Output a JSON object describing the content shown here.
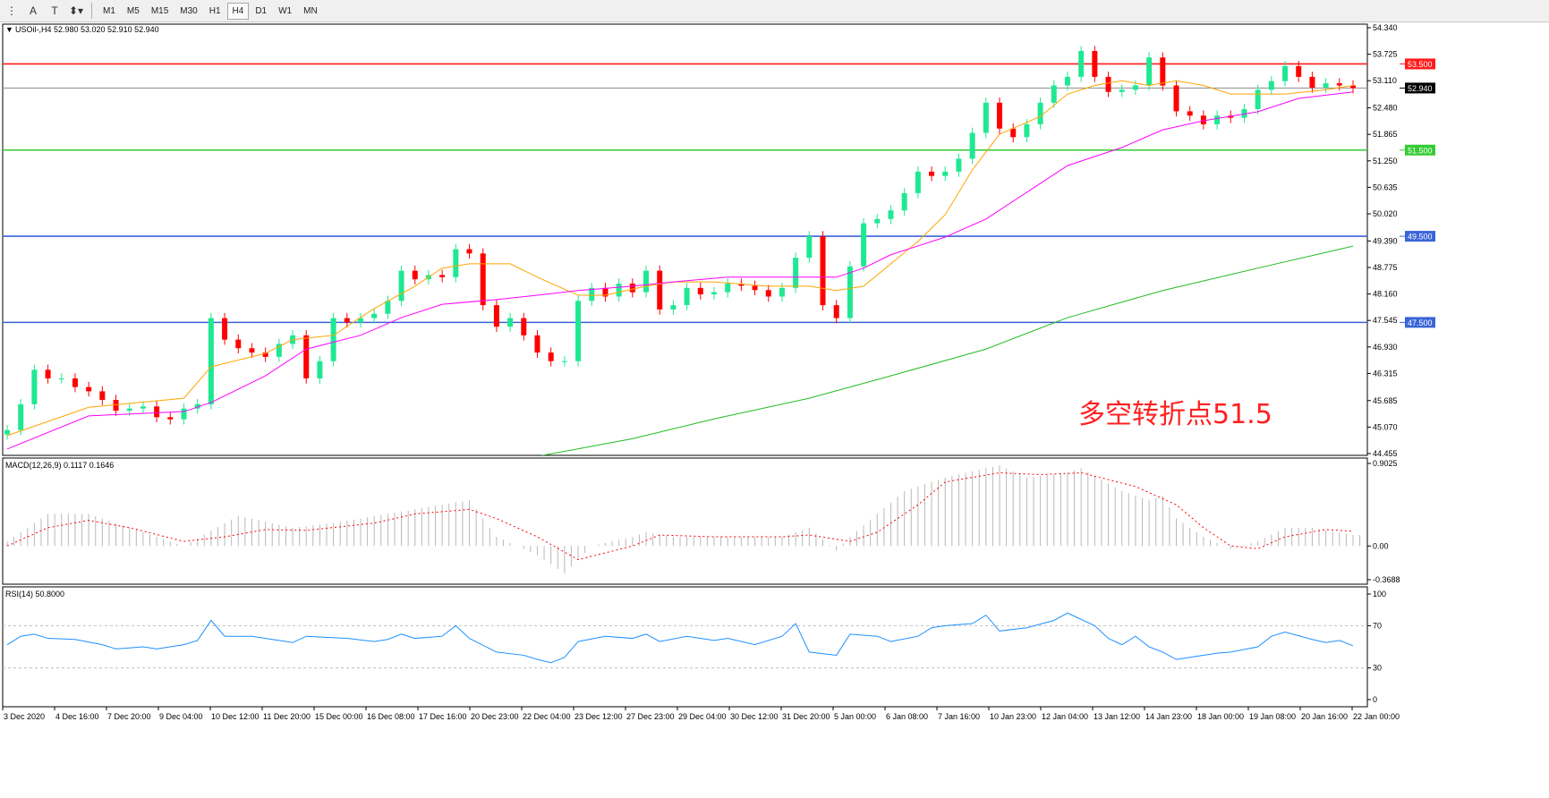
{
  "toolbar": {
    "tools": [
      {
        "icon": "period-separator-icon",
        "glyph": "⋮"
      },
      {
        "icon": "text-tool-icon",
        "glyph": "A"
      },
      {
        "icon": "text-label-icon",
        "glyph": "T"
      },
      {
        "icon": "arrows-tool-icon",
        "glyph": "⬍▾"
      }
    ],
    "timeframes": [
      "M1",
      "M5",
      "M15",
      "M30",
      "H1",
      "H4",
      "D1",
      "W1",
      "MN"
    ],
    "active_timeframe": "H4"
  },
  "header": {
    "symbol_info": "USOil-,H4  52.980 53.020 52.910 52.940"
  },
  "annotation": {
    "text": "多空转折点51.5",
    "color": "#ff2020"
  },
  "colors": {
    "bull": "#1fe893",
    "bear": "#ff0000",
    "ma_fast": "#ffa500",
    "ma_mid": "#ff00ff",
    "ma_slow": "#22bb22",
    "rsi": "#1e90ff",
    "macd_hist": "#b8b8b8",
    "macd_signal": "#ff0000"
  },
  "chart_data": [
    {
      "type": "candlestick",
      "title": "USOil-,H4",
      "ylim": [
        44.455,
        54.34
      ],
      "yticks": [
        "54.340",
        "53.725",
        "53.110",
        "52.480",
        "51.865",
        "51.250",
        "50.635",
        "50.020",
        "49.390",
        "48.775",
        "48.160",
        "47.545",
        "46.930",
        "46.315",
        "45.685",
        "45.070",
        "44.455"
      ],
      "xticks": [
        "3 Dec 2020",
        "4 Dec 16:00",
        "7 Dec 20:00",
        "9 Dec 04:00",
        "10 Dec 12:00",
        "11 Dec 20:00",
        "15 Dec 00:00",
        "16 Dec 08:00",
        "17 Dec 16:00",
        "20 Dec 23:00",
        "22 Dec 04:00",
        "23 Dec 12:00",
        "27 Dec 23:00",
        "29 Dec 04:00",
        "30 Dec 12:00",
        "31 Dec 20:00",
        "5 Jan 00:00",
        "6 Jan 08:00",
        "7 Jan 16:00",
        "10 Jan 23:00",
        "12 Jan 04:00",
        "13 Jan 12:00",
        "14 Jan 23:00",
        "18 Jan 00:00",
        "19 Jan 08:00",
        "20 Jan 16:00",
        "22 Jan 00:00"
      ],
      "current_price": {
        "value": 52.94,
        "label": "52.940"
      },
      "horizontal_levels": [
        {
          "value": 53.5,
          "label": "53.500",
          "color": "#ff1a1a"
        },
        {
          "value": 51.5,
          "label": "51.500",
          "color": "#33cc33"
        },
        {
          "value": 49.5,
          "label": "49.500",
          "color": "#3a64d8"
        },
        {
          "value": 47.5,
          "label": "47.500",
          "color": "#3a64d8"
        }
      ],
      "closes": [
        45.0,
        45.6,
        46.4,
        46.2,
        46.2,
        46.0,
        45.9,
        45.7,
        45.45,
        45.5,
        45.55,
        45.3,
        45.25,
        45.5,
        45.6,
        47.6,
        47.1,
        46.9,
        46.8,
        46.7,
        47.0,
        47.2,
        46.2,
        46.6,
        47.6,
        47.5,
        47.6,
        47.7,
        48.0,
        48.7,
        48.5,
        48.6,
        48.55,
        49.2,
        49.1,
        47.9,
        47.4,
        47.6,
        47.2,
        46.8,
        46.6,
        46.6,
        48.0,
        48.3,
        48.1,
        48.4,
        48.2,
        48.7,
        47.8,
        47.9,
        48.3,
        48.15,
        48.2,
        48.4,
        48.35,
        48.25,
        48.1,
        48.3,
        49.0,
        49.5,
        47.9,
        47.6,
        48.8,
        49.8,
        49.9,
        50.1,
        50.5,
        51.0,
        50.9,
        51.0,
        51.3,
        51.9,
        52.6,
        52.0,
        51.8,
        52.1,
        52.6,
        53.0,
        53.2,
        53.8,
        53.2,
        52.85,
        52.9,
        53.0,
        53.65,
        53.0,
        52.4,
        52.3,
        52.1,
        52.3,
        52.25,
        52.45,
        52.9,
        53.1,
        53.45,
        53.2,
        52.95,
        53.05,
        53.0,
        52.94
      ],
      "first_open": 44.9,
      "moving_averages": [
        {
          "key": "ma_fast",
          "points": [
            [
              0,
              44.87
            ],
            [
              6,
              45.53
            ],
            [
              13,
              45.74
            ],
            [
              15,
              46.47
            ],
            [
              19,
              46.78
            ],
            [
              21,
              47.1
            ],
            [
              24,
              47.2
            ],
            [
              27,
              47.82
            ],
            [
              30,
              48.34
            ],
            [
              32,
              48.76
            ],
            [
              34,
              48.86
            ],
            [
              37,
              48.86
            ],
            [
              39,
              48.55
            ],
            [
              42,
              48.13
            ],
            [
              44,
              48.13
            ],
            [
              47,
              48.34
            ],
            [
              49,
              48.44
            ],
            [
              52,
              48.44
            ],
            [
              56,
              48.34
            ],
            [
              59,
              48.34
            ],
            [
              61,
              48.24
            ],
            [
              63,
              48.34
            ],
            [
              65,
              48.86
            ],
            [
              67,
              49.38
            ],
            [
              69,
              50.0
            ],
            [
              71,
              51.04
            ],
            [
              73,
              51.87
            ],
            [
              76,
              52.28
            ],
            [
              78,
              52.8
            ],
            [
              80,
              53.0
            ],
            [
              82,
              53.11
            ],
            [
              84,
              53.0
            ],
            [
              86,
              53.11
            ],
            [
              88,
              53.0
            ],
            [
              90,
              52.8
            ],
            [
              92,
              52.8
            ],
            [
              94,
              52.8
            ],
            [
              97,
              52.9
            ],
            [
              99,
              53.0
            ]
          ]
        },
        {
          "key": "ma_mid",
          "points": [
            [
              0,
              44.56
            ],
            [
              6,
              45.33
            ],
            [
              13,
              45.43
            ],
            [
              15,
              45.64
            ],
            [
              19,
              46.26
            ],
            [
              22,
              46.88
            ],
            [
              26,
              47.2
            ],
            [
              29,
              47.61
            ],
            [
              32,
              47.92
            ],
            [
              36,
              48.03
            ],
            [
              39,
              48.13
            ],
            [
              42,
              48.24
            ],
            [
              46,
              48.34
            ],
            [
              49,
              48.44
            ],
            [
              53,
              48.55
            ],
            [
              59,
              48.55
            ],
            [
              61,
              48.55
            ],
            [
              63,
              48.76
            ],
            [
              65,
              49.07
            ],
            [
              69,
              49.48
            ],
            [
              72,
              49.9
            ],
            [
              75,
              50.52
            ],
            [
              78,
              51.14
            ],
            [
              82,
              51.56
            ],
            [
              85,
              51.97
            ],
            [
              88,
              52.18
            ],
            [
              92,
              52.39
            ],
            [
              95,
              52.7
            ],
            [
              99,
              52.85
            ]
          ]
        },
        {
          "key": "ma_slow",
          "points": [
            [
              39,
              44.39
            ],
            [
              46,
              44.8
            ],
            [
              52,
              45.26
            ],
            [
              59,
              45.74
            ],
            [
              65,
              46.26
            ],
            [
              72,
              46.88
            ],
            [
              78,
              47.61
            ],
            [
              85,
              48.24
            ],
            [
              92,
              48.76
            ],
            [
              99,
              49.27
            ]
          ]
        }
      ]
    },
    {
      "type": "bar+line",
      "title": "MACD(12,26,9) 0.1117 0.1646",
      "ylim": [
        -0.3688,
        0.9025
      ],
      "yticks": [
        "0.9025",
        "0.00",
        "-0.3688"
      ],
      "histogram": [
        [
          0,
          0.05
        ],
        [
          3,
          0.35
        ],
        [
          6,
          0.35
        ],
        [
          13,
          0.0
        ],
        [
          17,
          0.33
        ],
        [
          21,
          0.2
        ],
        [
          24,
          0.25
        ],
        [
          28,
          0.35
        ],
        [
          32,
          0.45
        ],
        [
          34,
          0.5
        ],
        [
          36,
          0.1
        ],
        [
          39,
          -0.1
        ],
        [
          41,
          -0.3
        ],
        [
          43,
          0.0
        ],
        [
          46,
          0.1
        ],
        [
          47,
          0.15
        ],
        [
          49,
          0.1
        ],
        [
          52,
          0.1
        ],
        [
          57,
          0.1
        ],
        [
          59,
          0.2
        ],
        [
          61,
          -0.05
        ],
        [
          62,
          0.1
        ],
        [
          64,
          0.35
        ],
        [
          66,
          0.6
        ],
        [
          69,
          0.75
        ],
        [
          72,
          0.85
        ],
        [
          73,
          0.88
        ],
        [
          75,
          0.75
        ],
        [
          78,
          0.8
        ],
        [
          79,
          0.85
        ],
        [
          82,
          0.6
        ],
        [
          84,
          0.5
        ],
        [
          85,
          0.55
        ],
        [
          86,
          0.3
        ],
        [
          88,
          0.1
        ],
        [
          90,
          -0.03
        ],
        [
          92,
          0.05
        ],
        [
          94,
          0.2
        ],
        [
          96,
          0.2
        ],
        [
          99,
          0.12
        ]
      ],
      "signal": [
        [
          0,
          0.0
        ],
        [
          3,
          0.2
        ],
        [
          6,
          0.28
        ],
        [
          9,
          0.2
        ],
        [
          13,
          0.05
        ],
        [
          16,
          0.1
        ],
        [
          19,
          0.18
        ],
        [
          22,
          0.17
        ],
        [
          27,
          0.25
        ],
        [
          30,
          0.35
        ],
        [
          34,
          0.4
        ],
        [
          36,
          0.3
        ],
        [
          39,
          0.1
        ],
        [
          42,
          -0.15
        ],
        [
          46,
          0.0
        ],
        [
          48,
          0.12
        ],
        [
          52,
          0.1
        ],
        [
          57,
          0.1
        ],
        [
          59,
          0.12
        ],
        [
          62,
          0.05
        ],
        [
          64,
          0.15
        ],
        [
          67,
          0.45
        ],
        [
          69,
          0.7
        ],
        [
          73,
          0.8
        ],
        [
          76,
          0.78
        ],
        [
          79,
          0.8
        ],
        [
          83,
          0.65
        ],
        [
          86,
          0.45
        ],
        [
          88,
          0.2
        ],
        [
          90,
          0.0
        ],
        [
          92,
          -0.03
        ],
        [
          94,
          0.1
        ],
        [
          97,
          0.18
        ],
        [
          99,
          0.16
        ]
      ]
    },
    {
      "type": "line",
      "title": "RSI(14) 50.8000",
      "ylim": [
        0,
        100
      ],
      "yticks": [
        "100",
        "70",
        "30",
        "0"
      ],
      "levels": [
        70,
        30
      ],
      "values": [
        [
          0,
          52
        ],
        [
          1,
          60
        ],
        [
          2,
          62
        ],
        [
          3,
          58
        ],
        [
          5,
          57
        ],
        [
          7,
          52
        ],
        [
          8,
          48
        ],
        [
          10,
          50
        ],
        [
          11,
          48
        ],
        [
          13,
          52
        ],
        [
          14,
          56
        ],
        [
          15,
          75
        ],
        [
          16,
          60
        ],
        [
          18,
          60
        ],
        [
          20,
          56
        ],
        [
          21,
          54
        ],
        [
          22,
          60
        ],
        [
          25,
          58
        ],
        [
          27,
          55
        ],
        [
          28,
          57
        ],
        [
          29,
          62
        ],
        [
          30,
          58
        ],
        [
          32,
          60
        ],
        [
          33,
          70
        ],
        [
          34,
          58
        ],
        [
          36,
          45
        ],
        [
          38,
          42
        ],
        [
          39,
          38
        ],
        [
          40,
          35
        ],
        [
          41,
          40
        ],
        [
          42,
          55
        ],
        [
          44,
          60
        ],
        [
          46,
          58
        ],
        [
          47,
          62
        ],
        [
          48,
          55
        ],
        [
          50,
          60
        ],
        [
          52,
          56
        ],
        [
          53,
          58
        ],
        [
          55,
          52
        ],
        [
          57,
          60
        ],
        [
          58,
          72
        ],
        [
          59,
          45
        ],
        [
          61,
          42
        ],
        [
          62,
          62
        ],
        [
          64,
          60
        ],
        [
          65,
          55
        ],
        [
          67,
          60
        ],
        [
          68,
          68
        ],
        [
          69,
          70
        ],
        [
          71,
          72
        ],
        [
          72,
          80
        ],
        [
          73,
          65
        ],
        [
          75,
          68
        ],
        [
          77,
          75
        ],
        [
          78,
          82
        ],
        [
          80,
          70
        ],
        [
          81,
          58
        ],
        [
          82,
          52
        ],
        [
          83,
          60
        ],
        [
          84,
          50
        ],
        [
          85,
          45
        ],
        [
          86,
          38
        ],
        [
          87,
          40
        ],
        [
          89,
          44
        ],
        [
          90,
          45
        ],
        [
          92,
          50
        ],
        [
          93,
          60
        ],
        [
          94,
          64
        ],
        [
          96,
          57
        ],
        [
          97,
          54
        ],
        [
          98,
          56
        ],
        [
          99,
          51
        ]
      ]
    }
  ]
}
